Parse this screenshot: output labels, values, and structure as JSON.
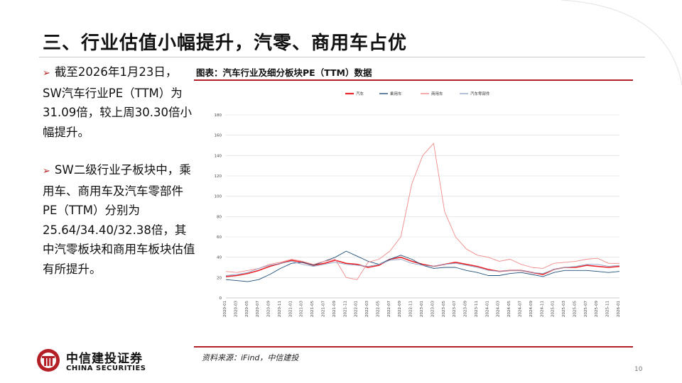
{
  "slide": {
    "title": "三、行业估值小幅提升，汽零、商用车占优",
    "page_number": "10"
  },
  "bullets": [
    "截至2026年1月23日，SW汽车行业PE（TTM）为31.09倍，较上周30.30倍小幅提升。",
    "SW二级行业子板块中，乘用车、商用车及汽车零部件PE（TTM）分别为25.64/34.40/32.38倍，其中汽零板块和商用车板块估值有所提升。"
  ],
  "figure": {
    "caption": "图表：汽车行业及细分板块PE（TTM）数据",
    "source": "资料来源：iFind，中信建投"
  },
  "logo": {
    "cn": "中信建投证券",
    "en": "CHINA SECURITIES"
  },
  "colors": {
    "accent": "#b31f24",
    "auto": "#e8232a",
    "passenger": "#1f4e79",
    "commercial": "#f08a8a",
    "parts": "#8fa6c8"
  },
  "chart_data": {
    "type": "line",
    "title": "",
    "xlabel": "",
    "ylabel": "",
    "ylim": [
      0,
      180
    ],
    "yticks": [
      "0",
      "20",
      "40",
      "60",
      "80",
      "100",
      "120",
      "140",
      "160",
      "180"
    ],
    "grid": "horizontal",
    "legend_position": "top-center",
    "x": [
      "2020-01",
      "2020-03",
      "2020-05",
      "2020-07",
      "2020-09",
      "2020-11",
      "2021-01",
      "2021-03",
      "2021-05",
      "2021-07",
      "2021-09",
      "2021-11",
      "2022-01",
      "2022-03",
      "2022-05",
      "2022-07",
      "2022-09",
      "2022-11",
      "2023-01",
      "2023-03",
      "2023-05",
      "2023-07",
      "2023-09",
      "2023-11",
      "2024-01",
      "2024-03",
      "2024-05",
      "2024-07",
      "2024-09",
      "2024-11",
      "2025-01",
      "2025-03",
      "2025-05",
      "2025-07",
      "2025-09",
      "2025-11",
      "2026-01"
    ],
    "series": [
      {
        "name": "汽车",
        "color": "#e8232a",
        "values": [
          21,
          22,
          24,
          27,
          31,
          34,
          37,
          35,
          32,
          34,
          37,
          34,
          33,
          30,
          32,
          38,
          40,
          36,
          33,
          31,
          33,
          35,
          33,
          31,
          28,
          26,
          27,
          27,
          25,
          23,
          28,
          30,
          30,
          32,
          31,
          30,
          31
        ]
      },
      {
        "name": "乘用车",
        "color": "#1f4e79",
        "values": [
          18,
          17,
          16,
          18,
          23,
          29,
          34,
          35,
          32,
          36,
          40,
          46,
          41,
          36,
          33,
          38,
          42,
          38,
          32,
          29,
          30,
          30,
          27,
          25,
          22,
          22,
          24,
          25,
          23,
          21,
          25,
          27,
          27,
          27,
          26,
          25,
          26
        ]
      },
      {
        "name": "商用车",
        "color": "#f08a8a",
        "values": [
          26,
          25,
          27,
          29,
          33,
          35,
          38,
          36,
          33,
          36,
          38,
          20,
          18,
          35,
          38,
          46,
          60,
          112,
          140,
          152,
          85,
          60,
          48,
          42,
          40,
          36,
          38,
          33,
          30,
          29,
          34,
          35,
          36,
          38,
          39,
          34,
          34
        ]
      },
      {
        "name": "汽车零部件",
        "color": "#8fa6c8",
        "values": [
          22,
          23,
          25,
          29,
          32,
          34,
          36,
          33,
          31,
          33,
          35,
          33,
          32,
          31,
          33,
          37,
          38,
          34,
          32,
          31,
          33,
          34,
          32,
          30,
          27,
          26,
          27,
          27,
          25,
          24,
          28,
          30,
          31,
          33,
          33,
          31,
          32
        ]
      }
    ]
  }
}
